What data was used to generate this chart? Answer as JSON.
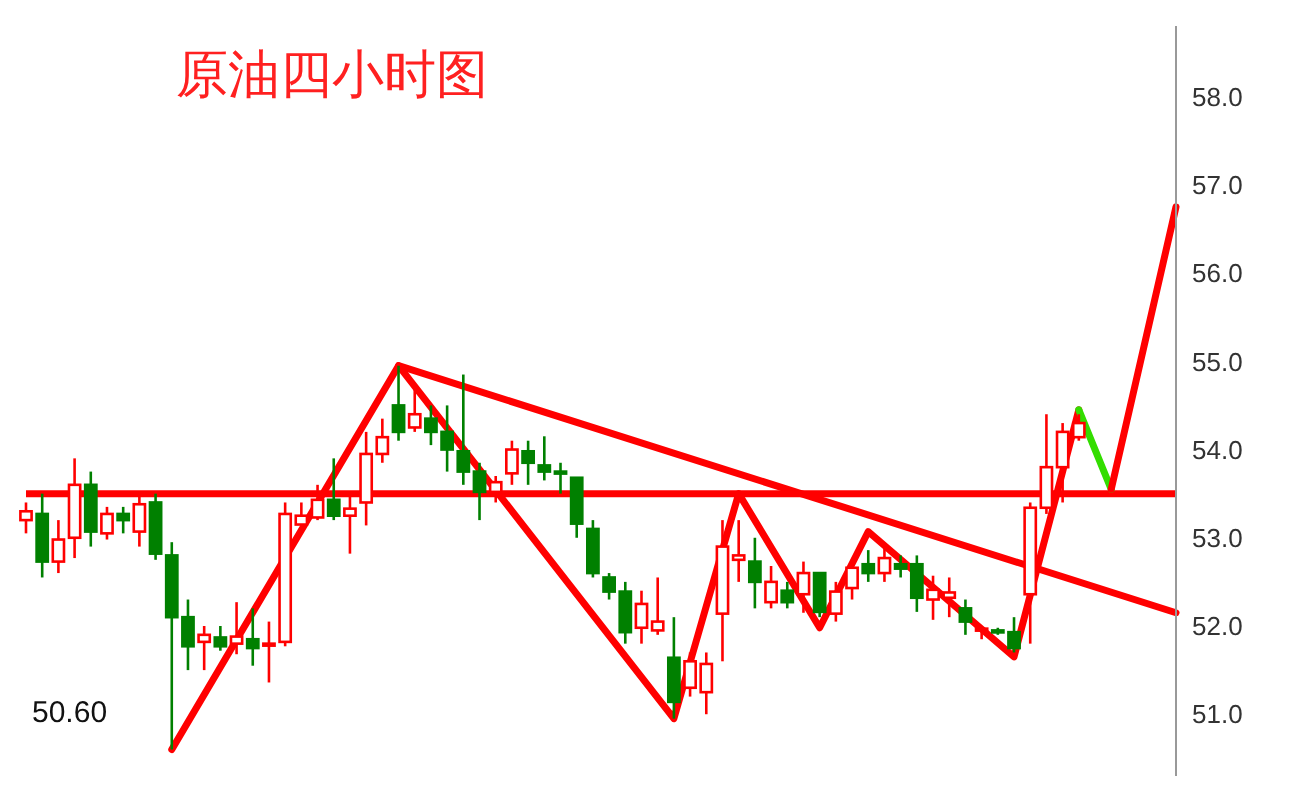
{
  "chart_data": {
    "type": "candlestick",
    "title": "原油四小时图",
    "annotations": [
      "50.60"
    ],
    "categories": [
      null,
      null,
      null,
      null,
      null,
      null,
      null,
      null,
      null,
      null,
      null,
      null,
      null,
      null,
      null,
      null,
      null,
      null,
      null,
      null,
      null,
      null,
      null,
      null,
      null,
      null,
      null,
      null,
      null,
      null,
      null,
      null,
      null,
      null,
      null,
      null,
      null,
      null,
      null,
      null,
      null,
      null,
      null,
      null,
      null,
      null,
      null,
      null,
      null,
      null,
      null,
      null,
      null,
      null,
      null,
      null,
      null,
      null,
      null,
      null,
      null,
      null,
      null,
      null,
      null,
      null,
      null,
      null,
      null,
      null,
      null,
      null
    ],
    "ohlc": [
      [
        53.2,
        53.4,
        53.05,
        53.3
      ],
      [
        53.27,
        53.5,
        52.55,
        52.73
      ],
      [
        52.73,
        53.2,
        52.6,
        52.98
      ],
      [
        53.0,
        53.9,
        52.77,
        53.6
      ],
      [
        53.6,
        53.75,
        52.9,
        53.07
      ],
      [
        53.05,
        53.35,
        52.98,
        53.27
      ],
      [
        53.27,
        53.35,
        53.05,
        53.2
      ],
      [
        53.07,
        53.48,
        52.9,
        53.38
      ],
      [
        53.4,
        53.5,
        52.75,
        52.82
      ],
      [
        52.8,
        52.95,
        50.6,
        52.1
      ],
      [
        52.1,
        52.3,
        51.5,
        51.77
      ],
      [
        51.82,
        52.0,
        51.5,
        51.9
      ],
      [
        51.87,
        52.0,
        51.72,
        51.77
      ],
      [
        51.8,
        52.27,
        51.68,
        51.88
      ],
      [
        51.85,
        52.2,
        51.55,
        51.75
      ],
      [
        51.78,
        52.05,
        51.36,
        51.8
      ],
      [
        51.82,
        53.4,
        51.77,
        53.27
      ],
      [
        53.15,
        53.4,
        53.05,
        53.25
      ],
      [
        53.23,
        53.6,
        53.2,
        53.43
      ],
      [
        53.43,
        53.9,
        53.2,
        53.25
      ],
      [
        53.25,
        53.5,
        52.82,
        53.33
      ],
      [
        53.4,
        54.2,
        53.14,
        53.95
      ],
      [
        53.95,
        54.35,
        53.85,
        54.14
      ],
      [
        54.5,
        54.95,
        54.1,
        54.2
      ],
      [
        54.25,
        54.7,
        54.2,
        54.4
      ],
      [
        54.35,
        54.5,
        54.05,
        54.2
      ],
      [
        54.2,
        54.5,
        53.75,
        54.0
      ],
      [
        53.98,
        54.85,
        53.6,
        53.75
      ],
      [
        53.75,
        53.85,
        53.2,
        53.52
      ],
      [
        53.52,
        53.7,
        53.4,
        53.63
      ],
      [
        53.73,
        54.1,
        53.6,
        54.0
      ],
      [
        53.98,
        54.1,
        53.6,
        53.85
      ],
      [
        53.82,
        54.15,
        53.65,
        53.75
      ],
      [
        53.75,
        53.85,
        53.5,
        53.73
      ],
      [
        53.68,
        53.68,
        53.0,
        53.16
      ],
      [
        53.1,
        53.2,
        52.55,
        52.6
      ],
      [
        52.55,
        52.6,
        52.3,
        52.39
      ],
      [
        52.39,
        52.5,
        51.8,
        51.93
      ],
      [
        51.98,
        52.4,
        51.8,
        52.25
      ],
      [
        51.95,
        52.55,
        51.9,
        52.05
      ],
      [
        51.64,
        52.1,
        50.95,
        51.14
      ],
      [
        51.3,
        51.7,
        51.2,
        51.6
      ],
      [
        51.25,
        51.7,
        51.0,
        51.57
      ],
      [
        52.14,
        53.2,
        51.6,
        52.9
      ],
      [
        52.75,
        53.2,
        52.5,
        52.8
      ],
      [
        52.73,
        53.0,
        52.2,
        52.5
      ],
      [
        52.27,
        52.68,
        52.2,
        52.5
      ],
      [
        52.4,
        52.5,
        52.2,
        52.27
      ],
      [
        52.36,
        52.73,
        52.15,
        52.6
      ],
      [
        52.6,
        52.6,
        52.1,
        52.16
      ],
      [
        52.14,
        52.5,
        52.05,
        52.39
      ],
      [
        52.43,
        52.75,
        52.3,
        52.66
      ],
      [
        52.7,
        52.86,
        52.5,
        52.6
      ],
      [
        52.6,
        52.9,
        52.5,
        52.77
      ],
      [
        52.7,
        52.8,
        52.55,
        52.65
      ],
      [
        52.7,
        52.8,
        52.16,
        52.32
      ],
      [
        52.3,
        52.57,
        52.07,
        52.41
      ],
      [
        52.32,
        52.55,
        52.1,
        52.38
      ],
      [
        52.2,
        52.3,
        51.9,
        52.05
      ],
      [
        51.95,
        52.0,
        51.85,
        51.97
      ],
      [
        51.95,
        51.98,
        51.9,
        51.93
      ],
      [
        51.93,
        52.1,
        51.7,
        51.75
      ],
      [
        52.36,
        53.4,
        51.8,
        53.34
      ],
      [
        53.34,
        54.4,
        53.27,
        53.8
      ],
      [
        53.8,
        54.3,
        53.4,
        54.2
      ],
      [
        54.14,
        54.4,
        54.1,
        54.3
      ],
      null,
      null,
      null,
      null,
      null,
      null
    ],
    "colors": [
      "#ff0000",
      "#008000",
      "#ff0000",
      "#ff0000",
      "#008000",
      "#ff0000",
      "#008000",
      "#ff0000",
      "#008000",
      "#008000",
      "#008000",
      "#ff0000",
      "#008000",
      "#ff0000",
      "#008000",
      "#ff0000",
      "#ff0000",
      "#ff0000",
      "#ff0000",
      "#008000",
      "#ff0000",
      "#ff0000",
      "#ff0000",
      "#008000",
      "#ff0000",
      "#008000",
      "#008000",
      "#008000",
      "#008000",
      "#ff0000",
      "#ff0000",
      "#008000",
      "#008000",
      "#008000",
      "#008000",
      "#008000",
      "#008000",
      "#008000",
      "#ff0000",
      "#ff0000",
      "#008000",
      "#ff0000",
      "#ff0000",
      "#ff0000",
      "#ff0000",
      "#008000",
      "#ff0000",
      "#008000",
      "#ff0000",
      "#008000",
      "#ff0000",
      "#ff0000",
      "#008000",
      "#ff0000",
      "#008000",
      "#008000",
      "#ff0000",
      "#ff0000",
      "#008000",
      "#ff0000",
      "#008000",
      "#008000",
      "#ff0000",
      "#ff0000",
      "#ff0000",
      "#ff0000",
      null,
      null,
      null,
      null,
      null,
      null
    ],
    "series": [
      {
        "type": "line",
        "color": "#ff0000",
        "values": [
          null,
          null,
          null,
          null,
          null,
          null,
          null,
          null,
          null,
          50.6,
          null,
          null,
          null,
          null,
          null,
          null,
          null,
          null,
          null,
          null,
          null,
          null,
          null,
          54.95,
          null,
          null,
          null,
          null,
          null,
          null,
          null,
          null,
          null,
          null,
          null,
          null,
          null,
          null,
          null,
          null,
          50.95,
          null,
          null,
          null,
          53.5,
          null,
          null,
          null,
          null,
          51.98,
          null,
          null,
          53.07,
          null,
          null,
          null,
          null,
          null,
          null,
          null,
          null,
          51.65,
          null,
          null,
          null,
          54.45,
          null,
          null,
          null,
          null,
          null,
          null
        ]
      },
      {
        "type": "line",
        "color": "#ff0000",
        "values": [
          null,
          null,
          null,
          null,
          null,
          null,
          null,
          null,
          null,
          null,
          null,
          null,
          null,
          null,
          null,
          null,
          null,
          null,
          null,
          null,
          null,
          null,
          null,
          54.95,
          null,
          null,
          null,
          null,
          null,
          null,
          null,
          null,
          null,
          null,
          null,
          null,
          null,
          null,
          null,
          null,
          null,
          null,
          null,
          null,
          null,
          null,
          null,
          null,
          null,
          null,
          null,
          null,
          null,
          null,
          null,
          null,
          null,
          null,
          null,
          null,
          null,
          null,
          null,
          null,
          null,
          null,
          null,
          null,
          null,
          null,
          null,
          52.15
        ]
      },
      {
        "type": "line",
        "color": "#33dd00",
        "values": [
          null,
          null,
          null,
          null,
          null,
          null,
          null,
          null,
          null,
          null,
          null,
          null,
          null,
          null,
          null,
          null,
          null,
          null,
          null,
          null,
          null,
          null,
          null,
          null,
          null,
          null,
          null,
          null,
          null,
          null,
          null,
          null,
          null,
          null,
          null,
          null,
          null,
          null,
          null,
          null,
          null,
          null,
          null,
          null,
          null,
          null,
          null,
          null,
          null,
          null,
          null,
          null,
          null,
          null,
          null,
          null,
          null,
          null,
          null,
          null,
          null,
          null,
          null,
          null,
          null,
          54.45,
          null,
          53.55,
          null,
          null,
          null,
          null
        ]
      },
      {
        "type": "line",
        "color": "#ff0000",
        "values": [
          null,
          null,
          null,
          null,
          null,
          null,
          null,
          null,
          null,
          null,
          null,
          null,
          null,
          null,
          null,
          null,
          null,
          null,
          null,
          null,
          null,
          null,
          null,
          null,
          null,
          null,
          null,
          null,
          null,
          null,
          null,
          null,
          null,
          null,
          null,
          null,
          null,
          null,
          null,
          null,
          null,
          null,
          null,
          null,
          null,
          null,
          null,
          null,
          null,
          null,
          null,
          null,
          null,
          null,
          null,
          null,
          null,
          null,
          null,
          null,
          null,
          null,
          null,
          null,
          null,
          null,
          null,
          53.55,
          null,
          null,
          null,
          56.75
        ]
      }
    ],
    "ref_lines": [
      {
        "axis": "y",
        "value": 53.5,
        "color": "#ff0000"
      }
    ],
    "ylim": [
      50.3,
      58.8
    ],
    "yticks": [
      {
        "value": 51,
        "label": "51.0"
      },
      {
        "value": 52,
        "label": "52.0"
      },
      {
        "value": 53,
        "label": "53.0"
      },
      {
        "value": 54,
        "label": "54.0"
      },
      {
        "value": 55,
        "label": "55.0"
      },
      {
        "value": 56,
        "label": "56.0"
      },
      {
        "value": 57,
        "label": "57.0"
      },
      {
        "value": 58,
        "label": "58.0"
      }
    ],
    "tick_labels": "y"
  }
}
